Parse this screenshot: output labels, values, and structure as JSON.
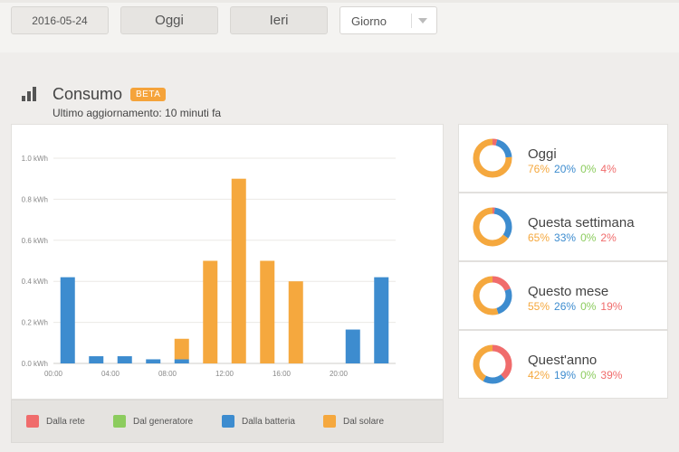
{
  "toolbar": {
    "date_value": "2016-05-24",
    "today_label": "Oggi",
    "yesterday_label": "Ieri",
    "period_select": "Giorno"
  },
  "section": {
    "title": "Consumo",
    "badge": "BETA",
    "subtitle": "Ultimo aggiornamento: 10 minuti fa"
  },
  "colors": {
    "grid": "#f5a33a",
    "solar": "#f5a83e",
    "battery": "#3d8ccf",
    "generator": "#8ccc5e",
    "grid_red": "#f06c6c"
  },
  "chart_data": {
    "type": "bar",
    "stacked": true,
    "y_tick_labels": [
      "0.0 kWh",
      "0.2 kWh",
      "0.4 kWh",
      "0.6 kWh",
      "0.8 kWh",
      "1.0 kWh"
    ],
    "ylim": [
      0,
      1.0
    ],
    "yticks": [
      0,
      0.2,
      0.4,
      0.6,
      0.8,
      1.0
    ],
    "x_tick_labels": [
      "00:00",
      "04:00",
      "08:00",
      "12:00",
      "16:00",
      "20:00"
    ],
    "x_tick_hours": [
      0,
      4,
      8,
      12,
      16,
      20
    ],
    "bar_hours": [
      1,
      3,
      5,
      7,
      9,
      11,
      13,
      15,
      17,
      19,
      21,
      23
    ],
    "series": [
      {
        "name": "Dalla rete",
        "color": "#f06c6c",
        "values": [
          0,
          0,
          0,
          0,
          0,
          0,
          0,
          0,
          0,
          0,
          0,
          0
        ]
      },
      {
        "name": "Dal generatore",
        "color": "#8ccc5e",
        "values": [
          0,
          0,
          0,
          0,
          0,
          0,
          0,
          0,
          0,
          0,
          0,
          0
        ]
      },
      {
        "name": "Dalla batteria",
        "color": "#3d8ccf",
        "values": [
          0.42,
          0.035,
          0.035,
          0.02,
          0.02,
          0,
          0,
          0,
          0,
          0,
          0.165,
          0.42
        ]
      },
      {
        "name": "Dal solare",
        "color": "#f5a83e",
        "values": [
          0,
          0,
          0,
          0,
          0.1,
          0.5,
          0.9,
          0.5,
          0.4,
          0,
          0,
          0
        ]
      }
    ],
    "legend_position": "bottom"
  },
  "stats": [
    {
      "label": "Oggi",
      "solar": 76,
      "battery": 20,
      "generator": 0,
      "grid": 4
    },
    {
      "label": "Questa settimana",
      "solar": 65,
      "battery": 33,
      "generator": 0,
      "grid": 2
    },
    {
      "label": "Questo mese",
      "solar": 55,
      "battery": 26,
      "generator": 0,
      "grid": 19
    },
    {
      "label": "Quest'anno",
      "solar": 42,
      "battery": 19,
      "generator": 0,
      "grid": 39
    }
  ],
  "stats_text": [
    {
      "solar": "76%",
      "battery": "20%",
      "generator": "0%",
      "grid": "4%"
    },
    {
      "solar": "65%",
      "battery": "33%",
      "generator": "0%",
      "grid": "2%"
    },
    {
      "solar": "55%",
      "battery": "26%",
      "generator": "0%",
      "grid": "19%"
    },
    {
      "solar": "42%",
      "battery": "19%",
      "generator": "0%",
      "grid": "39%"
    }
  ]
}
